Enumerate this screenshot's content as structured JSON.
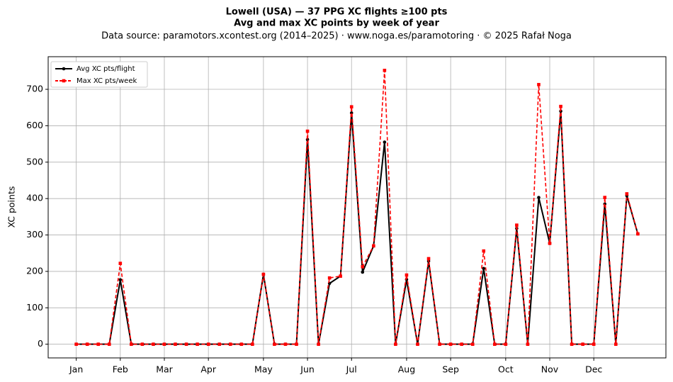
{
  "chart_data": {
    "type": "line",
    "title": "Lowell (USA)  —  37 PPG XC flights ≥100 pts",
    "subtitle": "Avg and max XC points by week of year",
    "source": "Data source: paramotors.xcontest.org (2014–2025)  ·  www.noga.es/paramotoring  ·  © 2025 Rafał Noga",
    "y_label": "XC points",
    "x": [
      1,
      2,
      3,
      4,
      5,
      6,
      7,
      8,
      9,
      10,
      11,
      12,
      13,
      14,
      15,
      16,
      17,
      18,
      19,
      20,
      21,
      22,
      23,
      24,
      25,
      26,
      27,
      28,
      29,
      30,
      31,
      32,
      33,
      34,
      35,
      36,
      37,
      38,
      39,
      40,
      41,
      42,
      43,
      44,
      45,
      46,
      47,
      48,
      49,
      50,
      51,
      52
    ],
    "series": [
      {
        "name": "Avg XC pts/flight",
        "color": "#000000",
        "marker": "circle",
        "dash": false,
        "values": [
          0,
          0,
          0,
          0,
          177,
          0,
          0,
          0,
          0,
          0,
          0,
          0,
          0,
          0,
          0,
          0,
          0,
          192,
          0,
          0,
          0,
          562,
          0,
          167,
          187,
          635,
          198,
          270,
          555,
          0,
          178,
          0,
          228,
          0,
          0,
          0,
          0,
          208,
          0,
          0,
          318,
          0,
          403,
          277,
          640,
          0,
          0,
          0,
          385,
          0,
          408,
          303
        ]
      },
      {
        "name": "Max XC pts/week",
        "color": "#ff0000",
        "marker": "square",
        "dash": true,
        "values": [
          0,
          0,
          0,
          0,
          222,
          0,
          0,
          0,
          0,
          0,
          0,
          0,
          0,
          0,
          0,
          0,
          0,
          192,
          0,
          0,
          0,
          585,
          0,
          182,
          187,
          652,
          213,
          270,
          752,
          0,
          190,
          0,
          235,
          0,
          0,
          0,
          0,
          256,
          0,
          0,
          327,
          0,
          713,
          277,
          653,
          0,
          0,
          0,
          403,
          0,
          413,
          303
        ]
      }
    ],
    "xlim": [
      -1.55,
      54.55
    ],
    "xticks": [
      {
        "value": 1,
        "label": "Jan"
      },
      {
        "value": 5,
        "label": "Feb"
      },
      {
        "value": 9,
        "label": "Mar"
      },
      {
        "value": 13,
        "label": "Apr"
      },
      {
        "value": 18,
        "label": "May"
      },
      {
        "value": 22,
        "label": "Jun"
      },
      {
        "value": 26,
        "label": "Jul"
      },
      {
        "value": 31,
        "label": "Aug"
      },
      {
        "value": 35,
        "label": "Sep"
      },
      {
        "value": 40,
        "label": "Oct"
      },
      {
        "value": 44,
        "label": "Nov"
      },
      {
        "value": 48,
        "label": "Dec"
      }
    ],
    "ylim": [
      -37.6,
      789.6
    ],
    "yticks": [
      0,
      100,
      200,
      300,
      400,
      500,
      600,
      700
    ],
    "grid": true,
    "legend": "upper left"
  }
}
